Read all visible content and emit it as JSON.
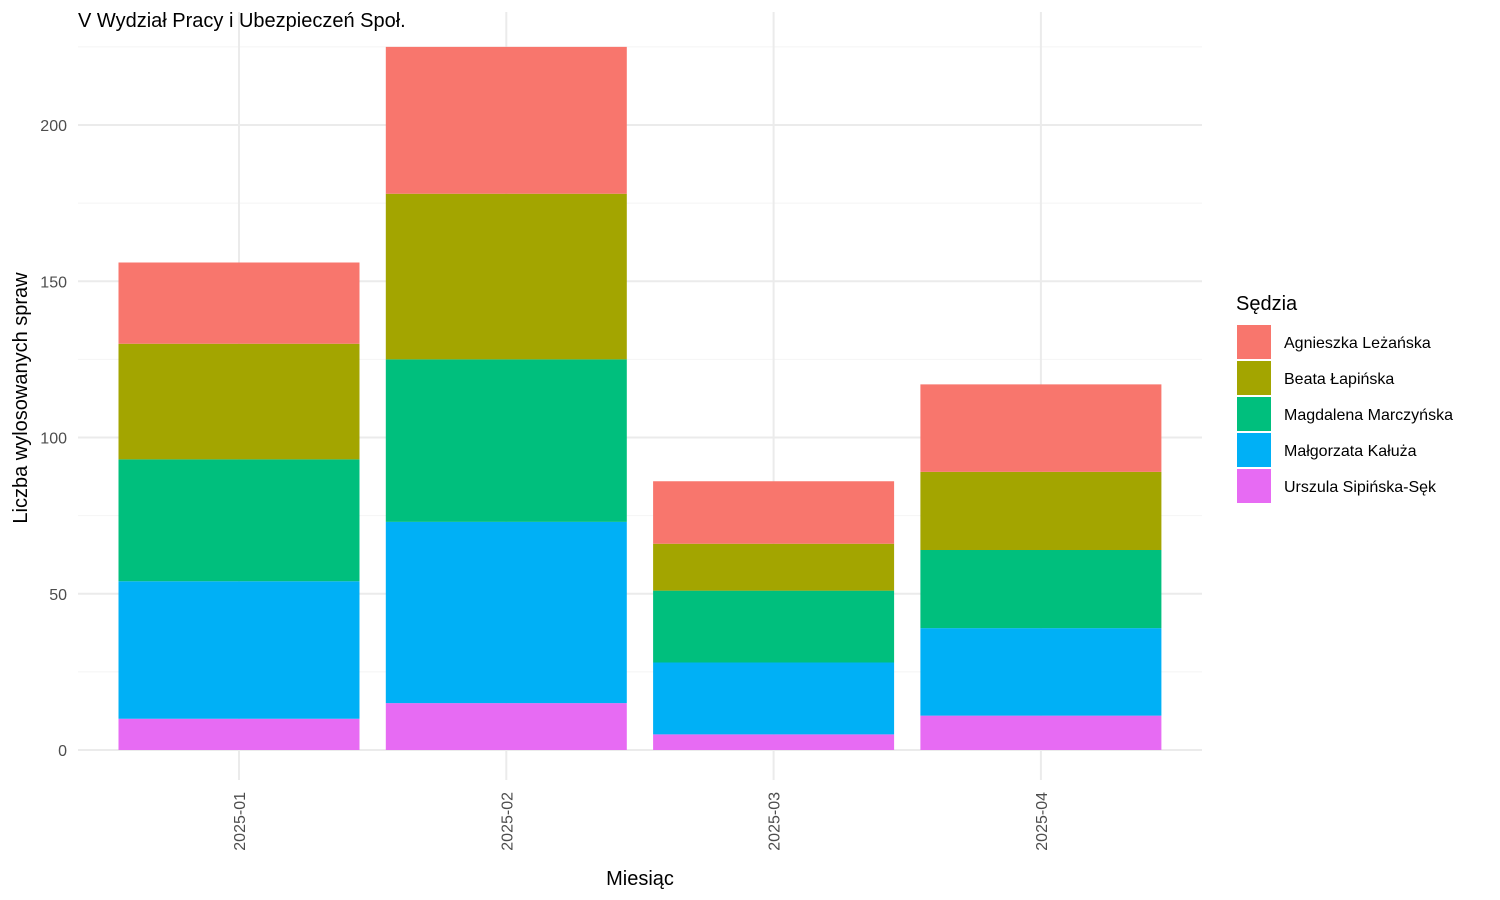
{
  "chart_data": {
    "type": "bar",
    "stacked": true,
    "title": "V Wydział Pracy i Ubezpieczeń Społ.",
    "xlabel": "Miesiąc",
    "ylabel": "Liczba wylosowanych spraw",
    "categories": [
      "2025-01",
      "2025-02",
      "2025-03",
      "2025-04"
    ],
    "ylim": [
      0,
      230
    ],
    "yticks": [
      0,
      50,
      100,
      150,
      200
    ],
    "grid": true,
    "legend": {
      "title": "Sędzia",
      "position": "right"
    },
    "series": [
      {
        "name": "Urszula Sipińska-Sęk",
        "color": "#E76BF3",
        "values": [
          10,
          15,
          5,
          11
        ]
      },
      {
        "name": "Małgorzata Kałuża",
        "color": "#00B0F6",
        "values": [
          44,
          58,
          23,
          28
        ]
      },
      {
        "name": "Magdalena Marczyńska",
        "color": "#00BF7D",
        "values": [
          39,
          52,
          23,
          25
        ]
      },
      {
        "name": "Beata Łapińska",
        "color": "#A3A500",
        "values": [
          37,
          53,
          15,
          25
        ]
      },
      {
        "name": "Agnieszka Leżańska",
        "color": "#F8766D",
        "values": [
          26,
          47,
          20,
          28
        ]
      }
    ],
    "legend_order": [
      "Agnieszka Leżańska",
      "Beata Łapińska",
      "Magdalena Marczyńska",
      "Małgorzata Kałuża",
      "Urszula Sipińska-Sęk"
    ]
  }
}
